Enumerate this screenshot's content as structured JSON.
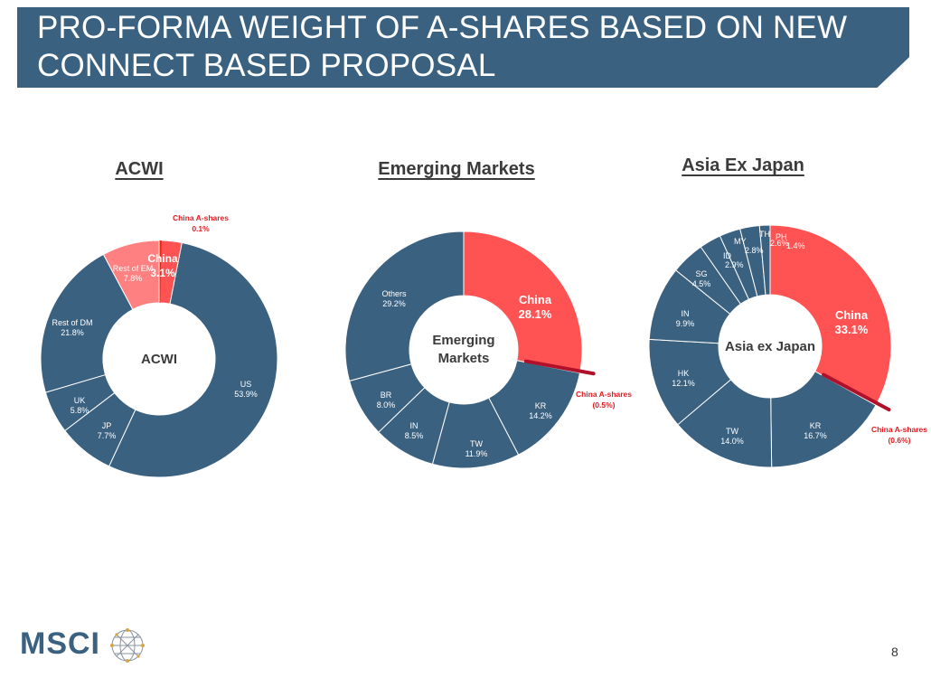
{
  "slide": {
    "title": "PRO-FORMA WEIGHT OF A-SHARES BASED ON NEW CONNECT BASED PROPOSAL",
    "page_number": "8",
    "logo_text": "MSCI"
  },
  "colors": {
    "banner": "#3b6180",
    "slice_default": "#3b6180",
    "china": "#ff5252",
    "rest_of_em": "#ff8080",
    "a_shares_acwi": "#ff1f00",
    "a_shares_line": "#b0102a",
    "a_shares_label": "#e11b22"
  },
  "chart_data": [
    {
      "type": "pie",
      "title": "ACWI",
      "center_label": "ACWI",
      "slices": [
        {
          "label": "China",
          "value": 3.1,
          "value_text": "3.1%",
          "color": "#ff5252"
        },
        {
          "label": "US",
          "value": 53.9,
          "value_text": "53.9%",
          "color": "#3b6180"
        },
        {
          "label": "JP",
          "value": 7.7,
          "value_text": "7.7%",
          "color": "#3b6180"
        },
        {
          "label": "UK",
          "value": 5.8,
          "value_text": "5.8%",
          "color": "#3b6180"
        },
        {
          "label": "Rest of DM",
          "value": 21.8,
          "value_text": "21.8%",
          "color": "#3b6180"
        },
        {
          "label": "Rest of EM",
          "value": 7.8,
          "value_text": "7.8%",
          "color": "#ff8080"
        }
      ],
      "a_shares": {
        "label": "China A-shares",
        "value": 0.1,
        "value_text": "0.1%"
      }
    },
    {
      "type": "pie",
      "title": "Emerging Markets",
      "center_label": [
        "Emerging",
        "Markets"
      ],
      "slices": [
        {
          "label": "China",
          "value": 28.1,
          "value_text": "28.1%",
          "color": "#ff5252"
        },
        {
          "label": "KR",
          "value": 14.2,
          "value_text": "14.2%",
          "color": "#3b6180"
        },
        {
          "label": "TW",
          "value": 11.9,
          "value_text": "11.9%",
          "color": "#3b6180"
        },
        {
          "label": "IN",
          "value": 8.5,
          "value_text": "8.5%",
          "color": "#3b6180"
        },
        {
          "label": "BR",
          "value": 8.0,
          "value_text": "8.0%",
          "color": "#3b6180"
        },
        {
          "label": "Others",
          "value": 29.2,
          "value_text": "29.2%",
          "color": "#3b6180"
        }
      ],
      "a_shares": {
        "label": "China A-shares",
        "value": 0.5,
        "value_text": "(0.5%)"
      }
    },
    {
      "type": "pie",
      "title": "Asia Ex Japan",
      "center_label": "Asia ex Japan",
      "slices": [
        {
          "label": "China",
          "value": 33.1,
          "value_text": "33.1%",
          "color": "#ff5252"
        },
        {
          "label": "KR",
          "value": 16.7,
          "value_text": "16.7%",
          "color": "#3b6180"
        },
        {
          "label": "TW",
          "value": 14.0,
          "value_text": "14.0%",
          "color": "#3b6180"
        },
        {
          "label": "HK",
          "value": 12.1,
          "value_text": "12.1%",
          "color": "#3b6180"
        },
        {
          "label": "IN",
          "value": 9.9,
          "value_text": "9.9%",
          "color": "#3b6180"
        },
        {
          "label": "SG",
          "value": 4.5,
          "value_text": "4.5%",
          "color": "#3b6180"
        },
        {
          "label": "ID",
          "value": 2.9,
          "value_text": "2.9%",
          "color": "#3b6180"
        },
        {
          "label": "MY",
          "value": 2.8,
          "value_text": "2.8%",
          "color": "#3b6180"
        },
        {
          "label": "TH",
          "value": 2.6,
          "value_text": "2.6%",
          "color": "#3b6180"
        },
        {
          "label": "PH",
          "value": 1.4,
          "value_text": "1.4%",
          "color": "#3b6180"
        }
      ],
      "a_shares": {
        "label": "China A-shares",
        "value": 0.6,
        "value_text": "(0.6%)"
      }
    }
  ]
}
